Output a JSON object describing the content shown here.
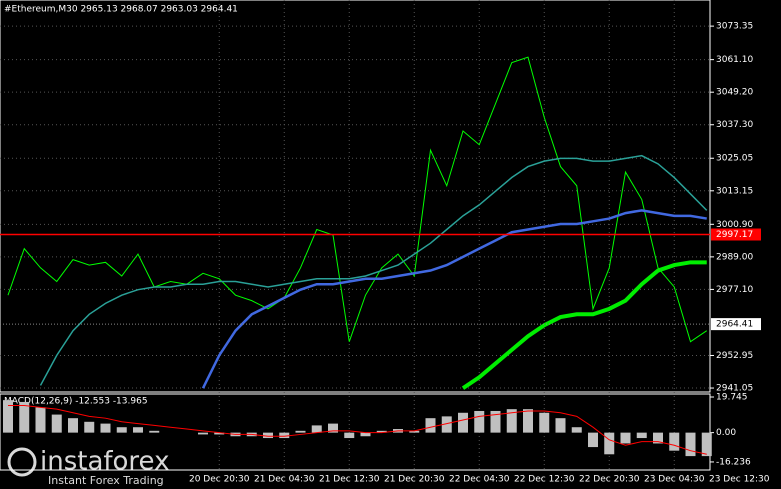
{
  "chart_data": [
    {
      "type": "line",
      "title": "#Ethereum,M30  2965.13 2968.07 2963.03 2964.41",
      "categories": [
        null,
        null,
        null,
        null,
        null,
        null,
        null,
        null,
        null,
        null,
        null,
        null,
        null,
        "20 Dec 20:30",
        null,
        null,
        null,
        "21 Dec 04:30",
        null,
        null,
        null,
        "21 Dec 12:30",
        null,
        null,
        null,
        "21 Dec 20:30",
        null,
        null,
        null,
        "22 Dec 04:30",
        null,
        null,
        null,
        "22 Dec 12:30",
        null,
        null,
        null,
        "22 Dec 20:30",
        null,
        null,
        null,
        "23 Dec 04:30",
        null,
        null,
        null,
        "23 Dec 12:30"
      ],
      "series": [
        {
          "color": "#00ff00",
          "values": [
            2975,
            2992,
            2985,
            2980,
            2988,
            2986,
            2987,
            2982,
            2990,
            2978,
            2980,
            2979,
            2983,
            2981,
            2975,
            2973,
            2970,
            2974,
            2985,
            2999,
            2997,
            2958,
            2975,
            2985,
            2990,
            2982,
            3028,
            3015,
            3035,
            3030,
            3045,
            3060,
            3062,
            3040,
            3022,
            3015,
            2970,
            2985,
            3020,
            3010,
            2985,
            2978,
            2958,
            2962,
            null,
            null
          ]
        },
        {
          "color": "#2aa198",
          "values": [
            null,
            null,
            2942,
            2953,
            2962,
            2968,
            2972,
            2975,
            2977,
            2978,
            2978,
            2979,
            2979,
            2980,
            2980,
            2979,
            2978,
            2979,
            2980,
            2981,
            2981,
            2981,
            2982,
            2984,
            2986,
            2990,
            2994,
            2999,
            3004,
            3008,
            3013,
            3018,
            3022,
            3024,
            3025,
            3025,
            3024,
            3024,
            3025,
            3026,
            3023,
            3018,
            3012,
            3006,
            null,
            null
          ]
        },
        {
          "color": "#4169e1",
          "values": [
            null,
            null,
            null,
            null,
            null,
            null,
            null,
            null,
            null,
            null,
            null,
            null,
            2941,
            2953,
            2962,
            2968,
            2971,
            2974,
            2977,
            2979,
            2979,
            2980,
            2981,
            2981,
            2982,
            2983,
            2984,
            2986,
            2989,
            2992,
            2995,
            2998,
            2999,
            3000,
            3001,
            3001,
            3002,
            3003,
            3005,
            3006,
            3005,
            3004,
            3004,
            3003,
            null,
            null
          ]
        },
        {
          "color": "#00ee00",
          "values": [
            null,
            null,
            null,
            null,
            null,
            null,
            null,
            null,
            null,
            null,
            null,
            null,
            null,
            null,
            null,
            null,
            null,
            null,
            null,
            null,
            null,
            null,
            null,
            null,
            null,
            null,
            null,
            null,
            2941,
            2945,
            2950,
            2955,
            2960,
            2964,
            2967,
            2968,
            2968,
            2970,
            2973,
            2979,
            2984,
            2986,
            2987,
            2987,
            null,
            null
          ]
        }
      ],
      "ylim": [
        2939.6,
        3082.9
      ],
      "yticks": [
        3073.35,
        {
          "value": 3061.1,
          "label": "3061.10"
        },
        {
          "value": 3049.2,
          "label": "3049.20"
        },
        {
          "value": 3037.3,
          "label": "3037.30"
        },
        3025.05,
        3013.15,
        {
          "value": 3000.9,
          "label": "3000.90"
        },
        {
          "value": 2989,
          "label": "2989.00"
        },
        {
          "value": 2977.1,
          "label": "2977.10"
        },
        2952.95,
        2941.05
      ],
      "hline": 2997.17,
      "hline_color": "#ff0000",
      "last_price": 2964.41,
      "grid": true
    },
    {
      "type": "histogram",
      "title": "MACD(12,26,9) -12.553 -13.965",
      "values": [
        18,
        17,
        14,
        10,
        8,
        6,
        5,
        3,
        3,
        1,
        0,
        0,
        -1,
        -1,
        -2,
        -2,
        -3,
        -3,
        1,
        4,
        5,
        -3,
        -2,
        1,
        2,
        1,
        8,
        9,
        11,
        12,
        12,
        13,
        13,
        11,
        8,
        3,
        -8,
        -12,
        -6,
        -3,
        -6,
        -10,
        -13,
        -13,
        null,
        null
      ],
      "color": "#c0c0c0",
      "signal": [
        15,
        15,
        14,
        13,
        11,
        9,
        8,
        6,
        5,
        4,
        3,
        2,
        1,
        0,
        -1,
        -1,
        -2,
        -2,
        -1,
        0,
        1,
        1,
        0,
        0,
        1,
        1,
        3,
        5,
        7,
        9,
        10,
        11,
        12,
        12,
        11,
        9,
        3,
        -4,
        -7,
        -5,
        -5,
        -7,
        -10,
        -12,
        null,
        null
      ],
      "signal_color": "#ff0000",
      "ylim": [
        -20.7,
        21.4
      ],
      "yticks": [
        19.745,
        {
          "value": 0,
          "label": "0.00"
        },
        -16.236
      ]
    }
  ],
  "watermark": {
    "brand": "instaforex",
    "tagline": "Instant Forex Trading"
  }
}
